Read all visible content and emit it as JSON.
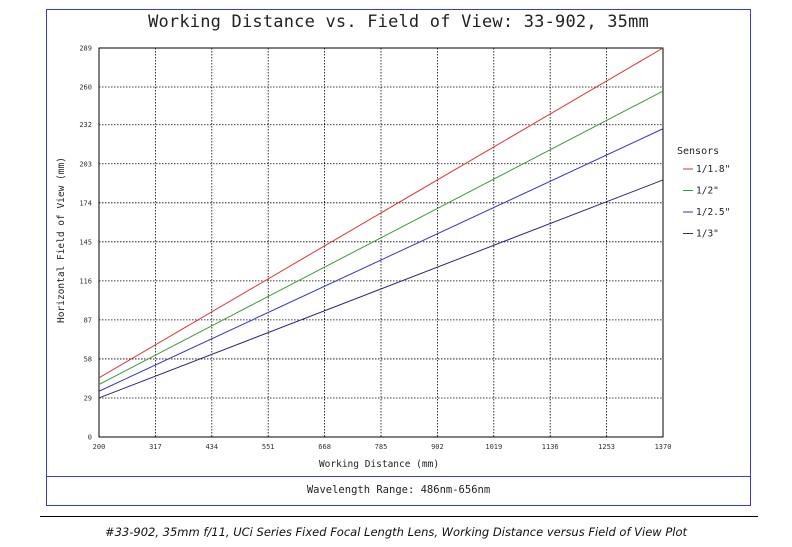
{
  "chart_data": {
    "type": "line",
    "title": "Working Distance vs. Field of View: 33-902, 35mm",
    "xlabel": "Working Distance (mm)",
    "ylabel": "Horizontal Field of View (mm)",
    "xlim": [
      200,
      1370
    ],
    "ylim": [
      0,
      289
    ],
    "x_ticks": [
      200,
      317,
      434,
      551,
      668,
      785,
      902,
      1019,
      1136,
      1253,
      1370
    ],
    "y_ticks": [
      0,
      29,
      58,
      87,
      116,
      145,
      174,
      203,
      232,
      260,
      289
    ],
    "grid": true,
    "legend": {
      "title": "Sensors",
      "placement": "right"
    },
    "series": [
      {
        "name": "1/1.8\"",
        "color": "#dd3333",
        "x": [
          200,
          1370
        ],
        "y": [
          44,
          289
        ]
      },
      {
        "name": "1/2\"",
        "color": "#3c9a3c",
        "x": [
          200,
          1370
        ],
        "y": [
          39,
          257
        ]
      },
      {
        "name": "1/2.5\"",
        "color": "#3535cc",
        "x": [
          200,
          1370
        ],
        "y": [
          34,
          229
        ]
      },
      {
        "name": "1/3\"",
        "color": "#2a2a7a",
        "x": [
          200,
          1370
        ],
        "y": [
          29,
          191
        ]
      }
    ]
  },
  "footer": {
    "wavelength": "Wavelength Range: 486nm-656nm",
    "caption": "#33-902, 35mm f/11, UCi Series Fixed Focal Length Lens, Working Distance versus Field of View Plot"
  }
}
